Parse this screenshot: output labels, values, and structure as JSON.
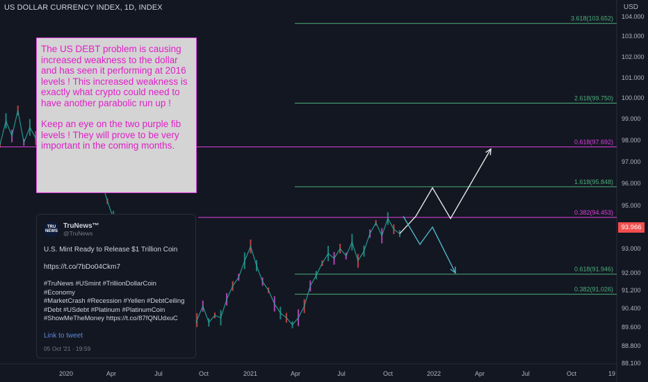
{
  "header": {
    "title": "US DOLLAR CURRENCY INDEX, 1D, INDEX",
    "currency": "USD"
  },
  "price_tag": {
    "value": "93.966"
  },
  "annotation": {
    "paragraph1": "The US DEBT problem is causing increased weakness to the dollar and has seen it performing at 2016 levels ! This increased weakness is exactly what crypto could need to have another parabolic run up !",
    "paragraph2": "Keep an eye on the two purple fib levels ! They will prove to be very important in the coming months."
  },
  "tweet": {
    "name": "TruNews™",
    "handle": "@TruNews",
    "avatar_text": "TRU NEWS",
    "headline": "U.S. Mint Ready to Release $1 Trillion Coin",
    "url": "https://t.co/7bDo04Ckm7",
    "hashtag_lines": [
      "#TruNews #USmint #TrillionDollarCoin #Economy",
      "#MarketCrash #Recession #Yellen #DebtCeiling",
      "#Debt #USdebt #Platinum #PlatinumCoin",
      "#ShowMeTheMoney https://t.co/87fQNUdxuC"
    ],
    "link_text": "Link to tweet",
    "date": "05 Oct '21 · 19:59"
  },
  "chart_data": {
    "type": "line",
    "x_ticks": [
      "2020",
      "Apr",
      "Jul",
      "Oct",
      "2021",
      "Apr",
      "Jul",
      "Oct",
      "2022",
      "Apr",
      "Jul",
      "Oct",
      "19"
    ],
    "y_ticks": [
      "104.000",
      "103.000",
      "102.000",
      "101.000",
      "100.000",
      "99.000",
      "98.000",
      "97.000",
      "96.000",
      "95.000",
      "93.000",
      "92.000",
      "91.200",
      "90.400",
      "89.600",
      "88.800",
      "88.100"
    ],
    "fib_levels": [
      {
        "label": "3.618(103.652)",
        "value": 103.652,
        "color": "#4caf7a"
      },
      {
        "label": "2.618(99.750)",
        "value": 99.75,
        "color": "#4caf7a"
      },
      {
        "label": "0.618(97.692)",
        "value": 97.692,
        "color": "#e040e0"
      },
      {
        "label": "1.618(95.848)",
        "value": 95.848,
        "color": "#4caf7a"
      },
      {
        "label": "0.382(94.453)",
        "value": 94.453,
        "color": "#e040e0"
      },
      {
        "label": "0.618(91.946)",
        "value": 91.946,
        "color": "#4caf7a"
      },
      {
        "label": "0.382(91.026)",
        "value": 91.026,
        "color": "#4caf7a"
      }
    ],
    "series": [
      {
        "values": [
          97.8,
          98.9,
          98.2,
          99.4,
          97.9,
          98.6,
          98.1,
          97.2,
          98.4,
          99.6,
          99.2,
          98.8,
          98.5,
          97.9,
          98.2,
          97.4,
          97.0,
          96.1,
          95.2,
          94.4,
          93.8,
          93.3,
          93.6,
          92.9,
          93.4,
          92.5,
          92.1,
          91.5,
          91.0,
          90.3,
          89.6,
          89.8,
          89.1,
          89.9,
          90.5,
          89.8,
          90.1,
          90.0,
          90.8,
          91.4,
          91.8,
          92.5,
          93.1,
          92.3,
          91.6,
          91.2,
          90.6,
          90.2,
          90.0,
          89.7,
          90.0,
          90.5,
          91.4,
          91.9,
          92.4,
          92.8,
          92.6,
          93.0,
          92.7,
          93.3,
          92.5,
          92.9,
          93.7,
          94.2,
          93.6,
          94.4,
          93.9,
          93.7
        ]
      },
      {
        "name": "",
        "values": [
          93.7,
          94.5,
          95.8,
          94.4,
          97.6
        ]
      },
      {
        "name": "",
        "values": [
          94.5,
          93.2,
          94.0,
          92.0
        ]
      }
    ]
  }
}
